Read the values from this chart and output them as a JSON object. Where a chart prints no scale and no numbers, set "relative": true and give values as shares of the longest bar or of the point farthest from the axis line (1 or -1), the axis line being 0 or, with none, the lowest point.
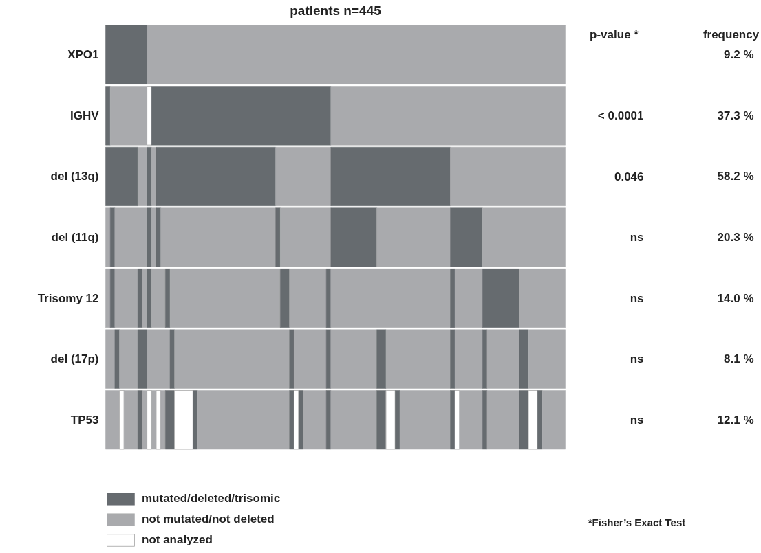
{
  "chart_data": {
    "type": "bar",
    "orientation": "horizontal",
    "stacked": true,
    "relative": true,
    "title": "patients n=445",
    "categories": [
      "XPO1",
      "IGHV",
      "del (13q)",
      "del (11q)",
      "Trisomy 12",
      "del (17p)",
      "TP53"
    ],
    "legend": "bottom left",
    "series": [
      {
        "name": "mutated/deleted/trisomic",
        "color": "#666b6f",
        "values": [
          0.09,
          null,
          null,
          null,
          null,
          null,
          null
        ]
      },
      {
        "name": "not mutated/not deleted",
        "color": "#a9aaad",
        "values": [
          0.91,
          null,
          null,
          null,
          null,
          null,
          null
        ]
      },
      {
        "color": "#666b6f",
        "values": [
          null,
          0.01,
          null,
          null,
          null,
          null,
          null
        ]
      },
      {
        "color": "#a9aaad",
        "values": [
          null,
          0.08,
          null,
          null,
          null,
          null,
          null
        ]
      },
      {
        "name": "not analyzed",
        "color": "#ffffff",
        "values": [
          null,
          0.01,
          null,
          null,
          null,
          null,
          null
        ]
      },
      {
        "color": "#666b6f",
        "values": [
          null,
          0.39,
          null,
          null,
          null,
          null,
          null
        ]
      },
      {
        "color": "#a9aaad",
        "values": [
          null,
          0.51,
          null,
          null,
          null,
          null,
          null
        ]
      },
      {
        "color": "#666b6f",
        "values": [
          null,
          null,
          0.07,
          null,
          null,
          null,
          null
        ]
      },
      {
        "color": "#a9aaad",
        "values": [
          null,
          null,
          0.02,
          null,
          null,
          null,
          null
        ]
      },
      {
        "color": "#666b6f",
        "values": [
          null,
          null,
          0.01,
          null,
          null,
          null,
          null
        ]
      },
      {
        "color": "#a9aaad",
        "values": [
          null,
          null,
          0.01,
          null,
          null,
          null,
          null
        ]
      },
      {
        "color": "#666b6f",
        "values": [
          null,
          null,
          0.26,
          null,
          null,
          null,
          null
        ]
      },
      {
        "color": "#a9aaad",
        "values": [
          null,
          null,
          0.12,
          null,
          null,
          null,
          null
        ]
      },
      {
        "color": "#666b6f",
        "values": [
          null,
          null,
          0.26,
          null,
          null,
          null,
          null
        ]
      },
      {
        "color": "#a9aaad",
        "values": [
          null,
          null,
          0.25,
          null,
          null,
          null,
          null
        ]
      },
      {
        "color": "#a9aaad",
        "values": [
          null,
          null,
          null,
          0.01,
          null,
          null,
          null
        ]
      },
      {
        "color": "#666b6f",
        "values": [
          null,
          null,
          null,
          0.01,
          null,
          null,
          null
        ]
      },
      {
        "color": "#a9aaad",
        "values": [
          null,
          null,
          null,
          0.07,
          null,
          null,
          null
        ]
      },
      {
        "color": "#666b6f",
        "values": [
          null,
          null,
          null,
          0.01,
          null,
          null,
          null
        ]
      },
      {
        "color": "#a9aaad",
        "values": [
          null,
          null,
          null,
          0.01,
          null,
          null,
          null
        ]
      },
      {
        "color": "#666b6f",
        "values": [
          null,
          null,
          null,
          0.01,
          null,
          null,
          null
        ]
      },
      {
        "color": "#a9aaad",
        "values": [
          null,
          null,
          null,
          0.25,
          null,
          null,
          null
        ]
      },
      {
        "color": "#666b6f",
        "values": [
          null,
          null,
          null,
          0.01,
          null,
          null,
          null
        ]
      },
      {
        "color": "#a9aaad",
        "values": [
          null,
          null,
          null,
          0.11,
          null,
          null,
          null
        ]
      },
      {
        "color": "#666b6f",
        "values": [
          null,
          null,
          null,
          0.1,
          null,
          null,
          null
        ]
      },
      {
        "color": "#a9aaad",
        "values": [
          null,
          null,
          null,
          0.16,
          null,
          null,
          null
        ]
      },
      {
        "color": "#666b6f",
        "values": [
          null,
          null,
          null,
          0.07,
          null,
          null,
          null
        ]
      },
      {
        "color": "#a9aaad",
        "values": [
          null,
          null,
          null,
          0.18,
          null,
          null,
          null
        ]
      },
      {
        "color": "#a9aaad",
        "values": [
          null,
          null,
          null,
          null,
          0.01,
          null,
          null
        ]
      },
      {
        "color": "#666b6f",
        "values": [
          null,
          null,
          null,
          null,
          0.01,
          null,
          null
        ]
      },
      {
        "color": "#a9aaad",
        "values": [
          null,
          null,
          null,
          null,
          0.05,
          null,
          null
        ]
      },
      {
        "color": "#666b6f",
        "values": [
          null,
          null,
          null,
          null,
          0.01,
          null,
          null
        ]
      },
      {
        "color": "#a9aaad",
        "values": [
          null,
          null,
          null,
          null,
          0.01,
          null,
          null
        ]
      },
      {
        "color": "#666b6f",
        "values": [
          null,
          null,
          null,
          null,
          0.01,
          null,
          null
        ]
      },
      {
        "color": "#a9aaad",
        "values": [
          null,
          null,
          null,
          null,
          0.03,
          null,
          null
        ]
      },
      {
        "color": "#666b6f",
        "values": [
          null,
          null,
          null,
          null,
          0.01,
          null,
          null
        ]
      },
      {
        "color": "#a9aaad",
        "values": [
          null,
          null,
          null,
          null,
          0.24,
          null,
          null
        ]
      },
      {
        "color": "#666b6f",
        "values": [
          null,
          null,
          null,
          null,
          0.02,
          null,
          null
        ]
      },
      {
        "color": "#a9aaad",
        "values": [
          null,
          null,
          null,
          null,
          0.08,
          null,
          null
        ]
      },
      {
        "color": "#666b6f",
        "values": [
          null,
          null,
          null,
          null,
          0.01,
          null,
          null
        ]
      },
      {
        "color": "#a9aaad",
        "values": [
          null,
          null,
          null,
          null,
          0.26,
          null,
          null
        ]
      },
      {
        "color": "#666b6f",
        "values": [
          null,
          null,
          null,
          null,
          0.01,
          null,
          null
        ]
      },
      {
        "color": "#a9aaad",
        "values": [
          null,
          null,
          null,
          null,
          0.06,
          null,
          null
        ]
      },
      {
        "color": "#666b6f",
        "values": [
          null,
          null,
          null,
          null,
          0.08,
          null,
          null
        ]
      },
      {
        "color": "#a9aaad",
        "values": [
          null,
          null,
          null,
          null,
          0.1,
          null,
          null
        ]
      },
      {
        "color": "#a9aaad",
        "values": [
          null,
          null,
          null,
          null,
          null,
          0.02,
          null
        ]
      },
      {
        "color": "#666b6f",
        "values": [
          null,
          null,
          null,
          null,
          null,
          0.01,
          null
        ]
      },
      {
        "color": "#a9aaad",
        "values": [
          null,
          null,
          null,
          null,
          null,
          0.04,
          null
        ]
      },
      {
        "color": "#666b6f",
        "values": [
          null,
          null,
          null,
          null,
          null,
          0.02,
          null
        ]
      },
      {
        "color": "#a9aaad",
        "values": [
          null,
          null,
          null,
          null,
          null,
          0.05,
          null
        ]
      },
      {
        "color": "#666b6f",
        "values": [
          null,
          null,
          null,
          null,
          null,
          0.01,
          null
        ]
      },
      {
        "color": "#a9aaad",
        "values": [
          null,
          null,
          null,
          null,
          null,
          0.25,
          null
        ]
      },
      {
        "color": "#666b6f",
        "values": [
          null,
          null,
          null,
          null,
          null,
          0.01,
          null
        ]
      },
      {
        "color": "#a9aaad",
        "values": [
          null,
          null,
          null,
          null,
          null,
          0.07,
          null
        ]
      },
      {
        "color": "#666b6f",
        "values": [
          null,
          null,
          null,
          null,
          null,
          0.01,
          null
        ]
      },
      {
        "color": "#a9aaad",
        "values": [
          null,
          null,
          null,
          null,
          null,
          0.1,
          null
        ]
      },
      {
        "color": "#666b6f",
        "values": [
          null,
          null,
          null,
          null,
          null,
          0.02,
          null
        ]
      },
      {
        "color": "#a9aaad",
        "values": [
          null,
          null,
          null,
          null,
          null,
          0.14,
          null
        ]
      },
      {
        "color": "#666b6f",
        "values": [
          null,
          null,
          null,
          null,
          null,
          0.01,
          null
        ]
      },
      {
        "color": "#a9aaad",
        "values": [
          null,
          null,
          null,
          null,
          null,
          0.06,
          null
        ]
      },
      {
        "color": "#666b6f",
        "values": [
          null,
          null,
          null,
          null,
          null,
          0.01,
          null
        ]
      },
      {
        "color": "#a9aaad",
        "values": [
          null,
          null,
          null,
          null,
          null,
          0.07,
          null
        ]
      },
      {
        "color": "#666b6f",
        "values": [
          null,
          null,
          null,
          null,
          null,
          0.02,
          null
        ]
      },
      {
        "color": "#a9aaad",
        "values": [
          null,
          null,
          null,
          null,
          null,
          0.08,
          null
        ]
      },
      {
        "color": "#a9aaad",
        "values": [
          null,
          null,
          null,
          null,
          null,
          null,
          0.03
        ]
      },
      {
        "color": "#ffffff",
        "values": [
          null,
          null,
          null,
          null,
          null,
          null,
          0.01
        ]
      },
      {
        "color": "#a9aaad",
        "values": [
          null,
          null,
          null,
          null,
          null,
          null,
          0.03
        ]
      },
      {
        "color": "#666b6f",
        "values": [
          null,
          null,
          null,
          null,
          null,
          null,
          0.01
        ]
      },
      {
        "color": "#a9aaad",
        "values": [
          null,
          null,
          null,
          null,
          null,
          null,
          0.01
        ]
      },
      {
        "color": "#ffffff",
        "values": [
          null,
          null,
          null,
          null,
          null,
          null,
          0.01
        ]
      },
      {
        "color": "#a9aaad",
        "values": [
          null,
          null,
          null,
          null,
          null,
          null,
          0.01
        ]
      },
      {
        "color": "#ffffff",
        "values": [
          null,
          null,
          null,
          null,
          null,
          null,
          0.01
        ]
      },
      {
        "color": "#a9aaad",
        "values": [
          null,
          null,
          null,
          null,
          null,
          null,
          0.01
        ]
      },
      {
        "color": "#666b6f",
        "values": [
          null,
          null,
          null,
          null,
          null,
          null,
          0.02
        ]
      },
      {
        "color": "#ffffff",
        "values": [
          null,
          null,
          null,
          null,
          null,
          null,
          0.04
        ]
      },
      {
        "color": "#666b6f",
        "values": [
          null,
          null,
          null,
          null,
          null,
          null,
          0.01
        ]
      },
      {
        "color": "#a9aaad",
        "values": [
          null,
          null,
          null,
          null,
          null,
          null,
          0.2
        ]
      },
      {
        "color": "#666b6f",
        "values": [
          null,
          null,
          null,
          null,
          null,
          null,
          0.01
        ]
      },
      {
        "color": "#ffffff",
        "values": [
          null,
          null,
          null,
          null,
          null,
          null,
          0.01
        ]
      },
      {
        "color": "#666b6f",
        "values": [
          null,
          null,
          null,
          null,
          null,
          null,
          0.01
        ]
      },
      {
        "color": "#a9aaad",
        "values": [
          null,
          null,
          null,
          null,
          null,
          null,
          0.05
        ]
      },
      {
        "color": "#666b6f",
        "values": [
          null,
          null,
          null,
          null,
          null,
          null,
          0.01
        ]
      },
      {
        "color": "#a9aaad",
        "values": [
          null,
          null,
          null,
          null,
          null,
          null,
          0.1
        ]
      },
      {
        "color": "#666b6f",
        "values": [
          null,
          null,
          null,
          null,
          null,
          null,
          0.02
        ]
      },
      {
        "color": "#ffffff",
        "values": [
          null,
          null,
          null,
          null,
          null,
          null,
          0.02
        ]
      },
      {
        "color": "#666b6f",
        "values": [
          null,
          null,
          null,
          null,
          null,
          null,
          0.01
        ]
      },
      {
        "color": "#a9aaad",
        "values": [
          null,
          null,
          null,
          null,
          null,
          null,
          0.11
        ]
      },
      {
        "color": "#666b6f",
        "values": [
          null,
          null,
          null,
          null,
          null,
          null,
          0.01
        ]
      },
      {
        "color": "#ffffff",
        "values": [
          null,
          null,
          null,
          null,
          null,
          null,
          0.01
        ]
      },
      {
        "color": "#a9aaad",
        "values": [
          null,
          null,
          null,
          null,
          null,
          null,
          0.05
        ]
      },
      {
        "color": "#666b6f",
        "values": [
          null,
          null,
          null,
          null,
          null,
          null,
          0.01
        ]
      },
      {
        "color": "#a9aaad",
        "values": [
          null,
          null,
          null,
          null,
          null,
          null,
          0.07
        ]
      },
      {
        "color": "#666b6f",
        "values": [
          null,
          null,
          null,
          null,
          null,
          null,
          0.02
        ]
      },
      {
        "color": "#ffffff",
        "values": [
          null,
          null,
          null,
          null,
          null,
          null,
          0.02
        ]
      },
      {
        "color": "#666b6f",
        "values": [
          null,
          null,
          null,
          null,
          null,
          null,
          0.01
        ]
      },
      {
        "color": "#a9aaad",
        "values": [
          null,
          null,
          null,
          null,
          null,
          null,
          0.05
        ]
      }
    ],
    "annotations": [
      "p-value *",
      "< 0.0001",
      "0.046",
      "ns",
      "ns",
      "ns",
      "ns",
      "frequency",
      "9.2 %",
      "37.3 %",
      "58.2 %",
      "20.3 %",
      "14.0 %",
      "8.1 %",
      "12.1 %",
      "*Fisher’s Exact Test"
    ]
  }
}
